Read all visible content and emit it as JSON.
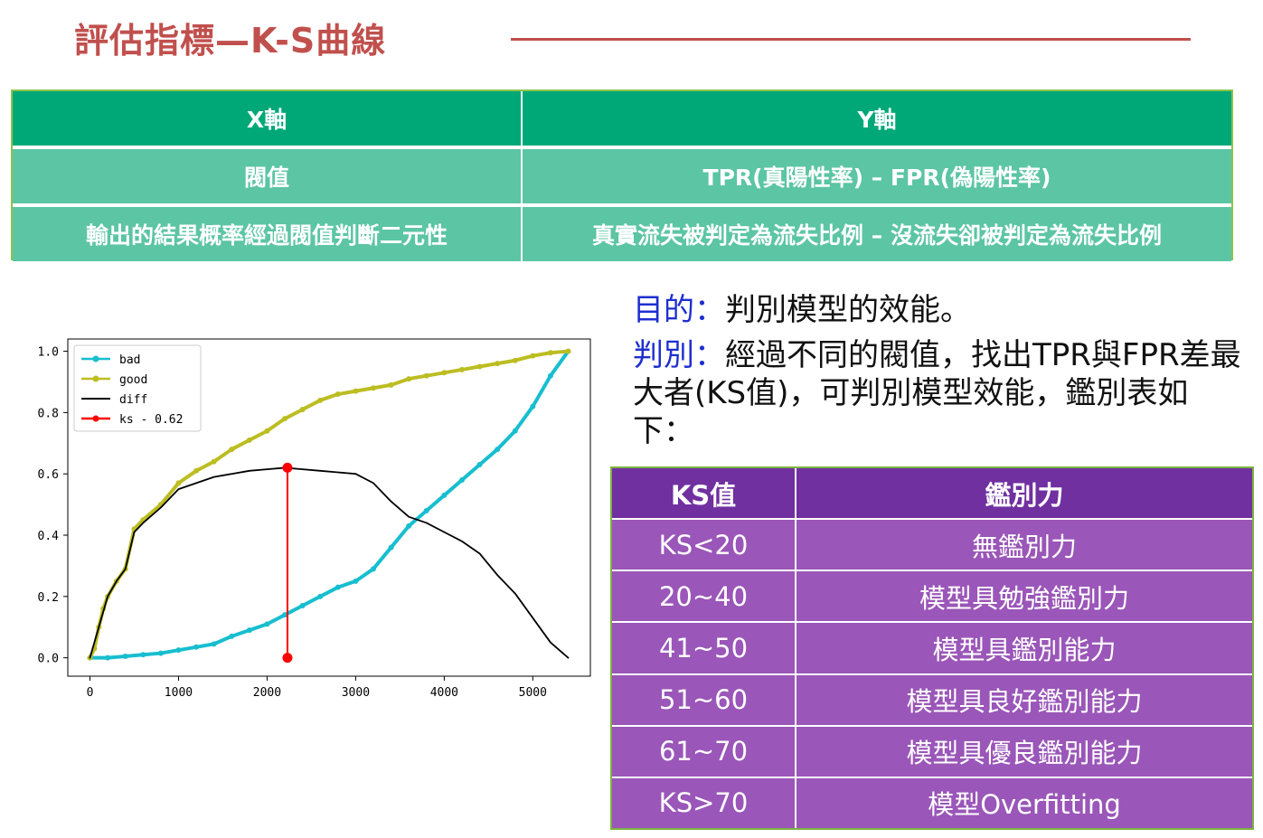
{
  "title": "評估指標—K-S曲線",
  "top_table": {
    "header": [
      "X軸",
      "Y軸"
    ],
    "rows": [
      [
        "閥值",
        "TPR(真陽性率) – FPR(偽陽性率)"
      ],
      [
        "輸出的結果概率經過閥值判斷二元性",
        "真實流失被判定為流失比例 – 沒流失卻被判定為流失比例"
      ]
    ]
  },
  "desc": {
    "purpose_label": "目的：",
    "purpose_text": "判別模型的效能。",
    "judge_label": "判別：",
    "judge_text": "經過不同的閥值，找出TPR與FPR差最大者(KS值)，可判別模型效能，鑑別表如下："
  },
  "ks_table": {
    "header": [
      "KS值",
      "鑑別力"
    ],
    "rows": [
      [
        "KS<20",
        "無鑑別力"
      ],
      [
        "20~40",
        "模型具勉強鑑別力"
      ],
      [
        "41~50",
        "模型具鑑別能力"
      ],
      [
        "51~60",
        "模型具良好鑑別能力"
      ],
      [
        "61~70",
        "模型具優良鑑別能力"
      ],
      [
        "KS>70",
        "模型Overfitting"
      ]
    ]
  },
  "chart_data": {
    "type": "line",
    "xlim": [
      -250,
      5650
    ],
    "ylim": [
      -0.06,
      1.04
    ],
    "xticks": [
      "0",
      "1000",
      "2000",
      "3000",
      "4000",
      "5000"
    ],
    "yticks": [
      "0.0",
      "0.2",
      "0.4",
      "0.6",
      "0.8",
      "1.0"
    ],
    "legend_position": "top-left",
    "series": [
      {
        "name": "bad",
        "color": "#17becf",
        "marker": "circle",
        "x": [
          0,
          200,
          400,
          600,
          800,
          1000,
          1200,
          1400,
          1600,
          1800,
          2000,
          2200,
          2400,
          2600,
          2800,
          3000,
          3200,
          3400,
          3600,
          3800,
          4000,
          4200,
          4400,
          4600,
          4800,
          5000,
          5200,
          5400
        ],
        "y": [
          0,
          0,
          0.005,
          0.01,
          0.015,
          0.025,
          0.035,
          0.045,
          0.07,
          0.09,
          0.11,
          0.14,
          0.17,
          0.2,
          0.23,
          0.25,
          0.29,
          0.36,
          0.43,
          0.48,
          0.53,
          0.58,
          0.63,
          0.68,
          0.74,
          0.82,
          0.92,
          1.0
        ]
      },
      {
        "name": "good",
        "color": "#bcbd22",
        "marker": "circle",
        "x": [
          0,
          50,
          100,
          150,
          200,
          300,
          400,
          500,
          600,
          800,
          1000,
          1200,
          1400,
          1600,
          1800,
          2000,
          2200,
          2400,
          2600,
          2800,
          3000,
          3200,
          3400,
          3600,
          3800,
          4000,
          4200,
          4400,
          4600,
          4800,
          5000,
          5200,
          5400
        ],
        "y": [
          0,
          0.03,
          0.1,
          0.16,
          0.2,
          0.25,
          0.29,
          0.42,
          0.45,
          0.5,
          0.57,
          0.61,
          0.64,
          0.68,
          0.71,
          0.74,
          0.78,
          0.81,
          0.84,
          0.86,
          0.87,
          0.88,
          0.89,
          0.91,
          0.92,
          0.93,
          0.94,
          0.95,
          0.96,
          0.97,
          0.985,
          0.995,
          1.0
        ]
      },
      {
        "name": "diff",
        "color": "#000000",
        "marker": "none",
        "x": [
          0,
          100,
          200,
          300,
          400,
          500,
          600,
          800,
          1000,
          1200,
          1400,
          1600,
          1800,
          2000,
          2200,
          2400,
          2600,
          2800,
          3000,
          3200,
          3400,
          3600,
          3800,
          4000,
          4200,
          4400,
          4600,
          4800,
          5000,
          5200,
          5400
        ],
        "y": [
          0,
          0.1,
          0.2,
          0.25,
          0.29,
          0.41,
          0.44,
          0.49,
          0.55,
          0.57,
          0.59,
          0.6,
          0.61,
          0.615,
          0.62,
          0.615,
          0.61,
          0.605,
          0.6,
          0.57,
          0.51,
          0.46,
          0.44,
          0.41,
          0.38,
          0.34,
          0.27,
          0.21,
          0.13,
          0.05,
          0.0
        ]
      },
      {
        "name": "ks - 0.62",
        "color": "#ff0000",
        "marker": "circle",
        "x": [
          2230,
          2230
        ],
        "y": [
          0.0,
          0.62
        ]
      }
    ]
  }
}
